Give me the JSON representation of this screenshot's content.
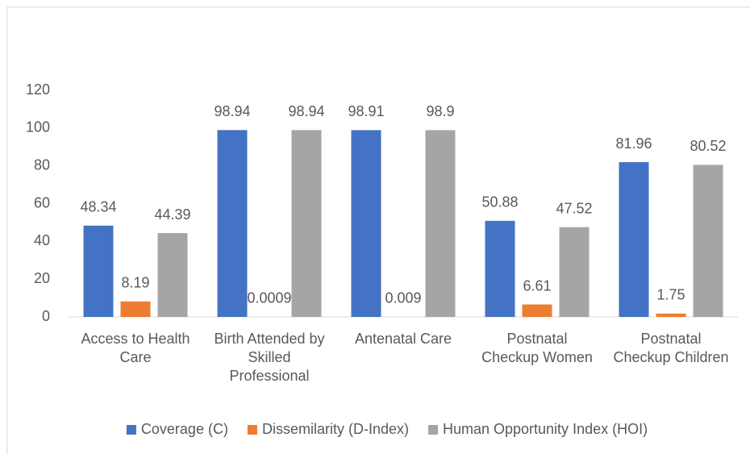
{
  "chart_data": {
    "type": "bar",
    "categories": [
      "Access to Health Care",
      "Birth Attended by Skilled Professional",
      "Antenatal Care",
      "Postnatal Checkup Women",
      "Postnatal Checkup Children"
    ],
    "series": [
      {
        "name": "Coverage (C)",
        "color": "#4472c4",
        "values": [
          48.34,
          98.94,
          98.91,
          50.88,
          81.96
        ]
      },
      {
        "name": "Dissemilarity (D-Index)",
        "color": "#ed7d31",
        "values": [
          8.19,
          0.0009,
          0.009,
          6.61,
          1.75
        ]
      },
      {
        "name": "Human Opportunity Index (HOI)",
        "color": "#a5a5a5",
        "values": [
          44.39,
          98.94,
          98.9,
          47.52,
          80.52
        ]
      }
    ],
    "ylim": [
      0,
      120
    ],
    "yticks": [
      0,
      20,
      40,
      60,
      80,
      100,
      120
    ],
    "grid": false,
    "legend": "bottom"
  }
}
